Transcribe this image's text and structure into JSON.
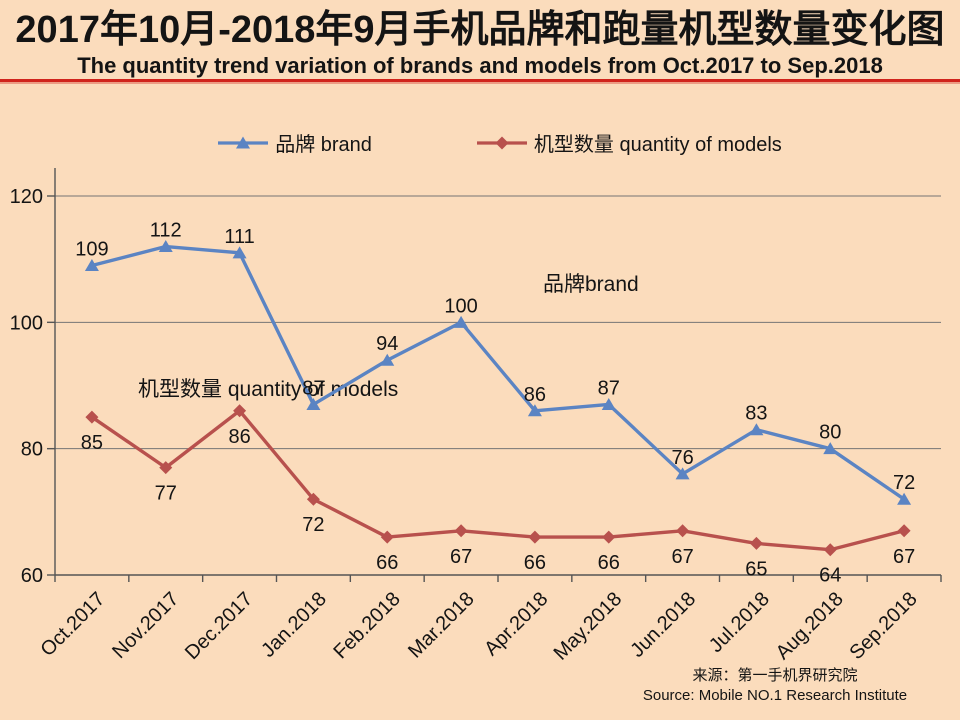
{
  "page": {
    "title": "2017年10月-2018年9月手机品牌和跑量机型数量变化图",
    "subtitle": "The quantity trend variation of brands and models from Oct.2017 to Sep.2018",
    "source_cn": "来源：第一手机界研究院",
    "source_en": "Source: Mobile NO.1 Research Institute"
  },
  "colors": {
    "background": "#fbdcbc",
    "brand_line": "#5b84c3",
    "models_line": "#b8514d",
    "separator": "#d0241c",
    "grid": "#757575",
    "axis": "#555555",
    "text": "#141414"
  },
  "legend": [
    {
      "label": "品牌 brand",
      "marker": "triangle-marker-icon",
      "color": "#5b84c3"
    },
    {
      "label": "机型数量 quantity of models",
      "marker": "diamond-marker-icon",
      "color": "#b8514d"
    }
  ],
  "chart_data": {
    "type": "line",
    "title": "2017年10月-2018年9月手机品牌和跑量机型数量变化图",
    "subtitle": "The quantity trend variation of brands and models from Oct.2017 to Sep.2018",
    "categories": [
      "Oct.2017",
      "Nov.2017",
      "Dec.2017",
      "Jan.2018",
      "Feb.2018",
      "Mar.2018",
      "Apr.2018",
      "May.2018",
      "Jun.2018",
      "Jul.2018",
      "Aug.2018",
      "Sep.2018"
    ],
    "series": [
      {
        "name": "品牌 brand",
        "marker": "triangle",
        "color": "#5b84c3",
        "values": [
          109,
          112,
          111,
          87,
          94,
          100,
          86,
          87,
          76,
          83,
          80,
          72
        ],
        "label_dy": -10
      },
      {
        "name": "机型数量 quantity of models",
        "marker": "diamond",
        "color": "#b8514d",
        "values": [
          85,
          77,
          86,
          72,
          66,
          67,
          66,
          66,
          67,
          65,
          64,
          67
        ],
        "label_dy": 32
      }
    ],
    "xlabel": "",
    "ylabel": "",
    "ylim": [
      60,
      120
    ],
    "yticks": [
      60,
      80,
      100,
      120
    ],
    "grid": true,
    "legend_position": "top",
    "annotations": [
      {
        "text": "品牌brand",
        "x": 543,
        "y": 291
      },
      {
        "text": "机型数量 quantity of models",
        "x": 138,
        "y": 396
      }
    ]
  }
}
